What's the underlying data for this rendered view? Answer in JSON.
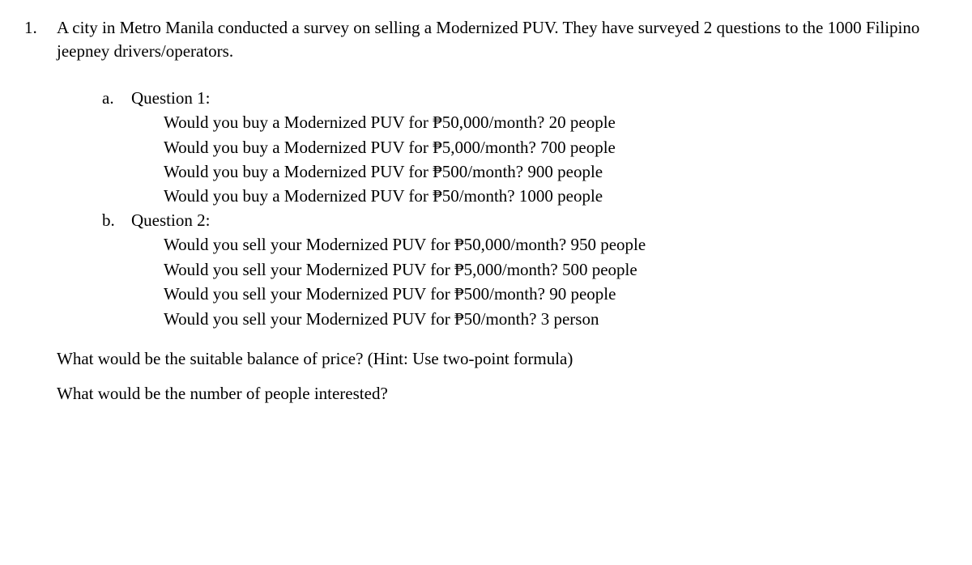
{
  "question_number": "1.",
  "intro": "A city in Metro Manila conducted a survey on selling a Modernized PUV. They have surveyed 2 questions to the 1000 Filipino jeepney drivers/operators.",
  "subA": {
    "letter": "a.",
    "title": "Question 1:",
    "lines": [
      "Would you buy a Modernized PUV for ₱50,000/month? 20 people",
      "Would you buy a Modernized PUV for ₱5,000/month? 700 people",
      "Would you buy a Modernized PUV for ₱500/month? 900 people",
      "Would you buy a Modernized PUV for ₱50/month? 1000 people"
    ]
  },
  "subB": {
    "letter": "b.",
    "title": "Question 2:",
    "lines": [
      "Would you sell your Modernized PUV for ₱50,000/month? 950 people",
      "Would you sell your Modernized PUV for ₱5,000/month? 500 people",
      "Would you sell your Modernized PUV for ₱500/month? 90 people",
      "Would you sell your Modernized PUV for ₱50/month? 3 person"
    ]
  },
  "prompt1": "What would be the suitable balance of price? (Hint: Use two-point formula)",
  "prompt2": "What would be the number of people interested?"
}
